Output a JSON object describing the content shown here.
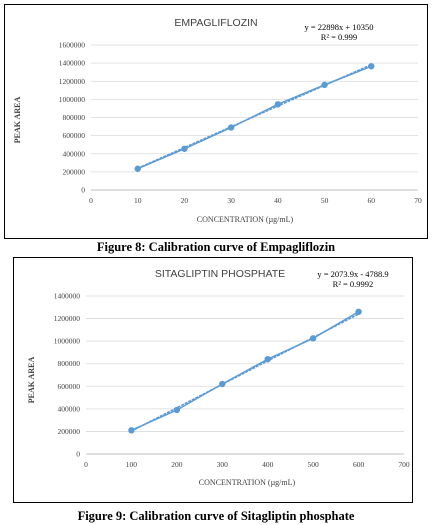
{
  "figures": [
    {
      "caption": "Figure 8: Calibration curve of Empagliflozin"
    },
    {
      "caption": "Figure 9: Calibration curve of Sitagliptin phosphate"
    }
  ],
  "chart_data": [
    {
      "type": "scatter",
      "title": "EMPAGLIFLOZIN",
      "equation": "y = 22898x + 10350",
      "r_squared": "R² = 0.999",
      "xlabel": "CONCENTRATION (µg/mL)",
      "ylabel": "PEAK AREA",
      "xlim": [
        0,
        70
      ],
      "ylim": [
        0,
        1600000
      ],
      "x_ticks": [
        0,
        10,
        20,
        30,
        40,
        50,
        60,
        70
      ],
      "y_ticks": [
        0,
        200000,
        400000,
        600000,
        800000,
        1000000,
        1200000,
        1400000,
        1600000
      ],
      "series": [
        {
          "x": [
            10,
            20,
            30,
            40,
            50,
            60
          ],
          "y": [
            235000,
            455000,
            690000,
            945000,
            1160000,
            1365000
          ]
        }
      ],
      "trendline": {
        "slope": 22898,
        "intercept": 10350
      },
      "grid": true,
      "point_color": "#5b9bd5",
      "line_color": "#5b9bd5",
      "grid_color": "#d9d9d9"
    },
    {
      "type": "scatter",
      "title": "SITAGLIPTIN PHOSPHATE",
      "equation": "y = 2073.9x - 4788.9",
      "r_squared": "R² = 0.9992",
      "xlabel": "CONCENTRATION (µg/mL)",
      "ylabel": "PEAK AREA",
      "xlim": [
        0,
        700
      ],
      "ylim": [
        0,
        1400000
      ],
      "x_ticks": [
        0,
        100,
        200,
        300,
        400,
        500,
        600,
        700
      ],
      "y_ticks": [
        0,
        200000,
        400000,
        600000,
        800000,
        1000000,
        1200000,
        1400000
      ],
      "series": [
        {
          "x": [
            100,
            200,
            300,
            400,
            500,
            600
          ],
          "y": [
            210000,
            390000,
            620000,
            840000,
            1025000,
            1260000
          ]
        }
      ],
      "trendline": {
        "slope": 2073.9,
        "intercept": -4788.9
      },
      "grid": true,
      "point_color": "#5b9bd5",
      "line_color": "#5b9bd5",
      "grid_color": "#d9d9d9"
    }
  ]
}
